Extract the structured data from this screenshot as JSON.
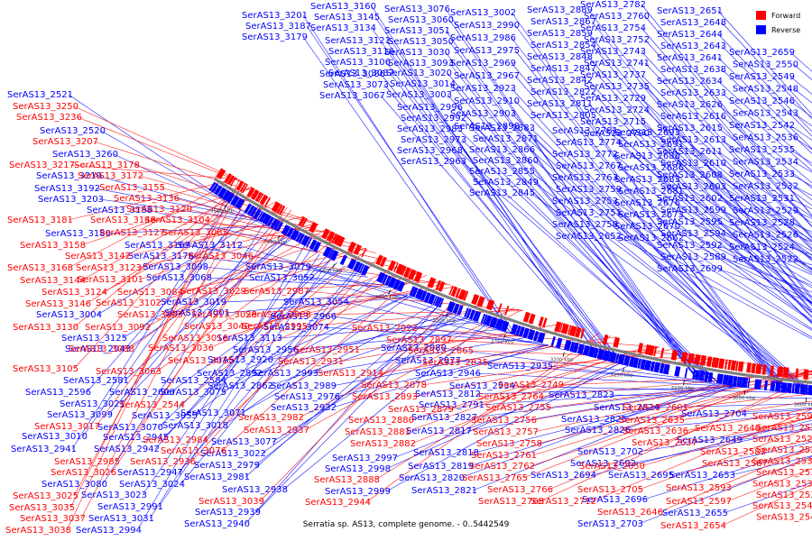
{
  "colors": {
    "forward": "#ff0000",
    "reverse": "#0000ff",
    "backbone": "#808080"
  },
  "legend": [
    {
      "label": "Forward",
      "color": "#ff0000"
    },
    {
      "label": "Reverse",
      "color": "#0000ff"
    }
  ],
  "caption": "Serratia sp. AS13, complete genome. - 0..5442549",
  "ticks": [
    "3500 kbp",
    "3450 kbp",
    "3400 kbp",
    "3350 kbp",
    "3300 kbp",
    "3250 kbp",
    "3200 kbp",
    "3150 kbp",
    "3100 kbp",
    "3050 kbp",
    "3000 kbp",
    "2950 kbp",
    "2900 kbp",
    "2850 kbp",
    "2800 kbp",
    "2750 kbp",
    "2700 kbp"
  ],
  "labels": {
    "reverse": [
      "SerAS13_3201",
      "SerAS13_3187",
      "SerAS13_3179",
      "SerAS13_3160",
      "SerAS13_3145",
      "SerAS13_3134",
      "SerAS13_3121",
      "SerAS13_3116",
      "SerAS13_3106",
      "SerAS13_3087",
      "SerAS13_3076",
      "SerAS13_3060",
      "SerAS13_3051",
      "SerAS13_3050",
      "SerAS13_3030",
      "SerAS13_3093",
      "SerAS13_3086",
      "SerAS13_3073",
      "SerAS13_3067",
      "SerAS13_3020",
      "SerAS13_3014",
      "SerAS13_3003",
      "SerAS13_3002",
      "SerAS13_2990",
      "SerAS13_2986",
      "SerAS13_2975",
      "SerAS13_2969",
      "SerAS13_2967",
      "SerAS13_2923",
      "SerAS13_2910",
      "SerAS13_2903",
      "SerAS13_2898",
      "SerAS13_2996",
      "SerAS13_2992",
      "SerAS13_2983",
      "SerAS13_2973",
      "SerAS13_2968",
      "SerAS13_2963",
      "SerAS13_2889",
      "SerAS13_2867",
      "SerAS13_2859",
      "SerAS13_2854",
      "SerAS13_2848",
      "SerAS13_2847",
      "SerAS13_2842",
      "SerAS13_2822",
      "SerAS13_2811",
      "SerAS13_2805",
      "SerAS13_2883",
      "SerAS13_2871",
      "SerAS13_2866",
      "SerAS13_2860",
      "SerAS13_2855",
      "SerAS13_2849",
      "SerAS13_2845",
      "SerAS13_2782",
      "SerAS13_2760",
      "SerAS13_2754",
      "SerAS13_2752",
      "SerAS13_2743",
      "SerAS13_2741",
      "SerAS13_2737",
      "SerAS13_2735",
      "SerAS13_2729",
      "SerAS13_2724",
      "SerAS13_2715",
      "SerAS13_2790",
      "SerAS13_2781",
      "SerAS13_2774",
      "SerAS13_2772",
      "SerAS13_2767",
      "SerAS13_2763",
      "SerAS13_2759",
      "SerAS13_2753",
      "SerAS13_2751",
      "SerAS13_2750",
      "SerAS13_2652",
      "SerAS13_2651",
      "SerAS13_2648",
      "SerAS13_2644",
      "SerAS13_2643",
      "SerAS13_2641",
      "SerAS13_2638",
      "SerAS13_2634",
      "SerAS13_2633",
      "SerAS13_2626",
      "SerAS13_2616",
      "SerAS13_2615",
      "SerAS13_2613",
      "SerAS13_2611",
      "SerAS13_2610",
      "SerAS13_2608",
      "SerAS13_2603",
      "SerAS13_2602",
      "SerAS13_2599",
      "SerAS13_2595",
      "SerAS13_2594",
      "SerAS13_2592",
      "SerAS13_2589",
      "SerAS13_2699",
      "SerAS13_2693",
      "SerAS13_2691",
      "SerAS13_2688",
      "SerAS13_2686",
      "SerAS13_2683",
      "SerAS13_2681",
      "SerAS13_2676",
      "SerAS13_2673",
      "SerAS13_2670",
      "SerAS13_2662",
      "SerAS13_2659",
      "SerAS13_2550",
      "SerAS13_2549",
      "SerAS13_2548",
      "SerAS13_2546",
      "SerAS13_2543",
      "SerAS13_2542",
      "SerAS13_2536",
      "SerAS13_2535",
      "SerAS13_2534",
      "SerAS13_2533",
      "SerAS13_2532",
      "SerAS13_2531",
      "SerAS13_2529",
      "SerAS13_2528",
      "SerAS13_2526",
      "SerAS13_2524",
      "SerAS13_2522",
      "SerAS13_2521",
      "SerAS13_2520",
      "SerAS13_3260",
      "SerAS13_3219",
      "SerAS13_3192",
      "SerAS13_3203",
      "SerAS13_3188",
      "SerAS13_3180",
      "SerAS13_3167",
      "SerAS13_3176",
      "SerAS13_3112",
      "SerAS13_3098",
      "SerAS13_3068",
      "SerAS13_3079",
      "SerAS13_3052",
      "SerAS13_3019",
      "SerAS13_3001",
      "SerAS13_3054",
      "SerAS13_3004",
      "SerAS13_2966",
      "SerAS13_3125",
      "SerAS13_2943",
      "SerAS13_3113",
      "SerAS13_3074",
      "SerAS13_2980",
      "SerAS13_2956",
      "SerAS13_2920",
      "SerAS13_2993",
      "SerAS13_2977",
      "SerAS13_2946",
      "SerAS13_2892",
      "SerAS13_2862",
      "SerAS13_2989",
      "SerAS13_2976",
      "SerAS13_2932",
      "SerAS13_2934",
      "SerAS13_2935",
      "SerAS13_2812",
      "SerAS13_2791",
      "SerAS13_2827",
      "SerAS13_2817",
      "SerAS13_2818",
      "SerAS13_2819",
      "SerAS13_2820",
      "SerAS13_2821",
      "SerAS13_2823",
      "SerAS13_2824",
      "SerAS13_2825",
      "SerAS13_2826",
      "SerAS13_2702",
      "SerAS13_2692",
      "SerAS13_2694",
      "SerAS13_2695",
      "SerAS13_2696",
      "SerAS13_2703",
      "SerAS13_2704",
      "SerAS13_2649",
      "SerAS13_2653",
      "SerAS13_2655",
      "SerAS13_2581",
      "SerAS13_2584",
      "SerAS13_2596",
      "SerAS13_2600",
      "SerAS13_3075",
      "SerAS13_3021",
      "SerAS13_3099",
      "SerAS13_3055",
      "SerAS13_3010",
      "SerAS13_3070",
      "SerAS13_3071",
      "SerAS13_3018",
      "SerAS13_3077",
      "SerAS13_3022",
      "SerAS13_2979",
      "SerAS13_2981",
      "SerAS13_2938",
      "SerAS13_2939",
      "SerAS13_2940",
      "SerAS13_2941",
      "SerAS13_2942",
      "SerAS13_2945",
      "SerAS13_2947",
      "SerAS13_3080",
      "SerAS13_3024",
      "SerAS13_3023",
      "SerAS13_2991",
      "SerAS13_3031",
      "SerAS13_2994",
      "SerAS13_2997",
      "SerAS13_2998",
      "SerAS13_2999",
      "SerAS13_3000",
      "SerAS13_2884",
      "SerAS13_2885",
      "SerAS13_2887"
    ],
    "forward": [
      "SerAS13_3250",
      "SerAS13_3236",
      "SerAS13_3207",
      "SerAS13_3217",
      "SerAS13_3178",
      "SerAS13_3172",
      "SerAS13_3155",
      "SerAS13_3136",
      "SerAS13_3120",
      "SerAS13_3181",
      "SerAS13_3148",
      "SerAS13_3104",
      "SerAS13_3127",
      "SerAS13_3085",
      "SerAS13_3158",
      "SerAS13_3142",
      "SerAS13_3046",
      "SerAS13_3168",
      "SerAS13_3123",
      "SerAS13_3144",
      "SerAS13_3101",
      "SerAS13_3124",
      "SerAS13_3084",
      "SerAS13_3029",
      "SerAS13_2987",
      "SerAS13_3146",
      "SerAS13_3102",
      "SerAS13_3083",
      "SerAS13_3028",
      "SerAS13_2988",
      "SerAS13_3130",
      "SerAS13_3092",
      "SerAS13_3016",
      "SerAS13_3040",
      "SerAS13_2995",
      "SerAS13_3088",
      "SerAS13_3036",
      "SerAS13_3015",
      "SerAS13_2951",
      "SerAS13_2931",
      "SerAS13_2922",
      "SerAS13_2897",
      "SerAS13_2865",
      "SerAS13_2937",
      "SerAS13_3105",
      "SerAS13_3063",
      "SerAS13_2914",
      "SerAS13_2878",
      "SerAS13_2893",
      "SerAS13_2879",
      "SerAS13_2880",
      "SerAS13_2881",
      "SerAS13_2882",
      "SerAS13_2835",
      "SerAS13_2749",
      "SerAS13_2764",
      "SerAS13_2755",
      "SerAS13_2756",
      "SerAS13_2757",
      "SerAS13_2758",
      "SerAS13_2761",
      "SerAS13_2762",
      "SerAS13_2765",
      "SerAS13_2766",
      "SerAS13_2768",
      "SerAS13_2712",
      "SerAS13_2705",
      "SerAS13_2650",
      "SerAS13_2646",
      "SerAS13_2654",
      "SerAS13_2601",
      "SerAS13_2635",
      "SerAS13_2636",
      "SerAS13_2637",
      "SerAS13_2640",
      "SerAS13_2582",
      "SerAS13_2587",
      "SerAS13_2593",
      "SerAS13_2597",
      "SerAS13_2598",
      "SerAS13_2523",
      "SerAS13_2525",
      "SerAS13_2527",
      "SerAS13_2530",
      "SerAS13_2537",
      "SerAS13_2538",
      "SerAS13_2539",
      "SerAS13_2540",
      "SerAS13_2541",
      "SerAS13_2544",
      "SerAS13_3017",
      "SerAS13_3076",
      "SerAS13_2984",
      "SerAS13_2982",
      "SerAS13_2936",
      "SerAS13_2985",
      "SerAS13_3026",
      "SerAS13_3025",
      "SerAS13_3035",
      "SerAS13_3037",
      "SerAS13_3038",
      "SerAS13_3039",
      "SerAS13_2944",
      "SerAS13_2888",
      "SerAS13_2886"
    ]
  }
}
